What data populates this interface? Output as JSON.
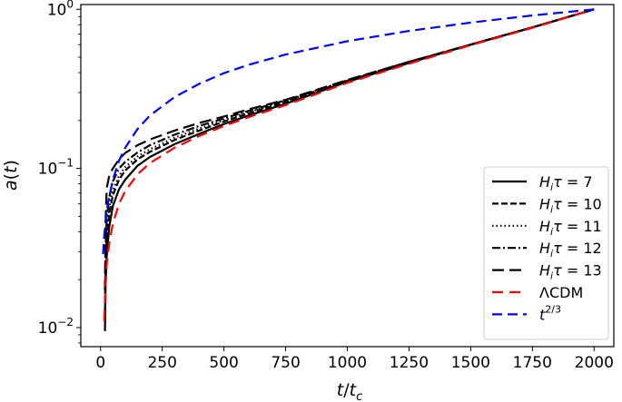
{
  "chart_data": {
    "type": "line",
    "xlabel": "t/t_c",
    "ylabel": "a(t)",
    "xlim": [
      -80,
      2080
    ],
    "ylim_log10": [
      -2.12,
      0.03
    ],
    "y_scale": "log",
    "grid": false,
    "legend_position": "lower-right",
    "x_ticks": [
      0,
      250,
      500,
      750,
      1000,
      1250,
      1500,
      1750,
      2000
    ],
    "y_ticks": [
      {
        "value": 0.01,
        "base": "10",
        "exp": "−2"
      },
      {
        "value": 0.1,
        "base": "10",
        "exp": "−1"
      },
      {
        "value": 1,
        "base": "10",
        "exp": "0"
      }
    ],
    "series": [
      {
        "name": "H_iτ = 7",
        "name_parts": [
          "7"
        ],
        "color": "#000000",
        "dash": "solid",
        "x": [
          18,
          20,
          25,
          35,
          50,
          75,
          100,
          150,
          200,
          300,
          400,
          500,
          600,
          750,
          1000,
          1250,
          1500,
          1750,
          2000
        ],
        "y": [
          0.0095,
          0.018,
          0.028,
          0.043,
          0.058,
          0.074,
          0.085,
          0.104,
          0.118,
          0.142,
          0.165,
          0.19,
          0.215,
          0.255,
          0.35,
          0.46,
          0.6,
          0.77,
          1.0
        ]
      },
      {
        "name": "H_iτ = 10",
        "name_parts": [
          "10"
        ],
        "color": "#000000",
        "dash": "dashed",
        "x": [
          18,
          20,
          25,
          35,
          50,
          75,
          100,
          150,
          200,
          300,
          400,
          500,
          600,
          750,
          1000,
          1250,
          1500,
          1750,
          2000
        ],
        "y": [
          0.011,
          0.022,
          0.036,
          0.052,
          0.068,
          0.085,
          0.097,
          0.114,
          0.127,
          0.151,
          0.173,
          0.197,
          0.222,
          0.262,
          0.355,
          0.465,
          0.6,
          0.77,
          1.0
        ]
      },
      {
        "name": "H_iτ = 11",
        "name_parts": [
          "11"
        ],
        "color": "#000000",
        "dash": "dotted",
        "x": [
          18,
          20,
          25,
          35,
          50,
          75,
          100,
          150,
          200,
          300,
          400,
          500,
          600,
          750,
          1000,
          1250,
          1500,
          1750,
          2000
        ],
        "y": [
          0.012,
          0.025,
          0.04,
          0.057,
          0.073,
          0.09,
          0.102,
          0.119,
          0.132,
          0.156,
          0.178,
          0.201,
          0.226,
          0.265,
          0.357,
          0.466,
          0.6,
          0.77,
          1.0
        ]
      },
      {
        "name": "H_iτ = 12",
        "name_parts": [
          "12"
        ],
        "color": "#000000",
        "dash": "dashdot",
        "x": [
          18,
          20,
          25,
          35,
          50,
          75,
          100,
          150,
          200,
          300,
          400,
          500,
          600,
          750,
          1000,
          1250,
          1500,
          1750,
          2000
        ],
        "y": [
          0.014,
          0.03,
          0.048,
          0.066,
          0.083,
          0.1,
          0.11,
          0.126,
          0.14,
          0.163,
          0.185,
          0.206,
          0.23,
          0.268,
          0.358,
          0.467,
          0.6,
          0.77,
          1.0
        ]
      },
      {
        "name": "H_iτ = 13",
        "name_parts": [
          "13"
        ],
        "color": "#000000",
        "dash": "longdash",
        "x": [
          18,
          20,
          25,
          35,
          50,
          75,
          100,
          150,
          200,
          300,
          400,
          500,
          600,
          750,
          1000,
          1250,
          1500,
          1750,
          2000
        ],
        "y": [
          0.017,
          0.045,
          0.075,
          0.09,
          0.1,
          0.114,
          0.125,
          0.14,
          0.152,
          0.173,
          0.193,
          0.212,
          0.235,
          0.27,
          0.36,
          0.468,
          0.6,
          0.77,
          1.0
        ]
      },
      {
        "name": "ΛCDM",
        "color": "#ff0000",
        "dash": "dashed",
        "x": [
          15,
          20,
          25,
          35,
          50,
          75,
          100,
          150,
          200,
          300,
          400,
          500,
          600,
          750,
          1000,
          1250,
          1500,
          1750,
          2000
        ],
        "y": [
          0.011,
          0.018,
          0.025,
          0.034,
          0.045,
          0.06,
          0.072,
          0.092,
          0.108,
          0.135,
          0.16,
          0.185,
          0.21,
          0.25,
          0.345,
          0.455,
          0.595,
          0.765,
          1.0
        ]
      },
      {
        "name": "t^{2/3}",
        "name_parts": [
          "t",
          "2/3"
        ],
        "color": "#0000ff",
        "dash": "dashed",
        "x": [
          10,
          15,
          20,
          30,
          50,
          75,
          100,
          150,
          200,
          300,
          400,
          500,
          600,
          750,
          1000,
          1250,
          1500,
          1750,
          2000
        ],
        "y": [
          0.029,
          0.038,
          0.046,
          0.061,
          0.085,
          0.112,
          0.135,
          0.177,
          0.215,
          0.281,
          0.34,
          0.397,
          0.448,
          0.52,
          0.63,
          0.731,
          0.825,
          0.915,
          1.0
        ]
      }
    ]
  }
}
